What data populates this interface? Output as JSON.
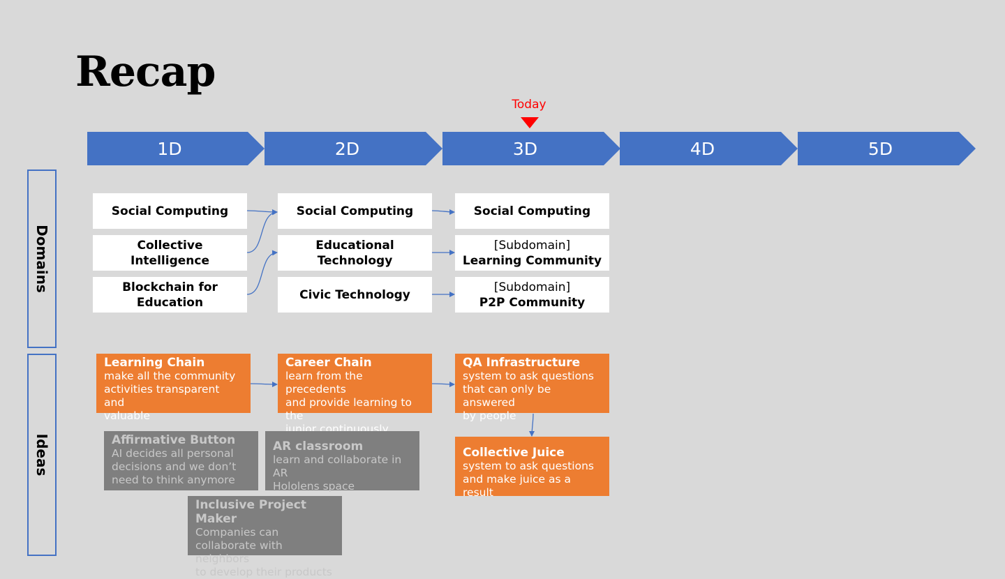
{
  "title": "Recap",
  "today": "Today",
  "phases": [
    "1D",
    "2D",
    "3D",
    "4D",
    "5D"
  ],
  "side_labels": {
    "domains": "Domains",
    "ideas": "Ideas"
  },
  "domains": {
    "d1": [
      {
        "lines": [
          "Social Computing"
        ]
      },
      {
        "lines": [
          "Collective",
          "Intelligence"
        ]
      },
      {
        "lines": [
          "Blockchain for",
          "Education"
        ]
      }
    ],
    "d2": [
      {
        "lines": [
          "Social Computing"
        ]
      },
      {
        "lines": [
          "Educational",
          "Technology"
        ]
      },
      {
        "lines": [
          "Civic Technology"
        ]
      }
    ],
    "d3": [
      {
        "lines": [
          "Social Computing"
        ]
      },
      {
        "prefix": "[Subdomain]",
        "lines": [
          "Learning Community"
        ]
      },
      {
        "prefix": "[Subdomain]",
        "lines": [
          "P2P Community"
        ]
      }
    ]
  },
  "ideas": {
    "learning_chain": {
      "title": "Learning Chain",
      "lines": [
        "make all the community",
        "activities transparent and",
        "valuable"
      ]
    },
    "career_chain": {
      "title": "Career Chain",
      "lines": [
        "learn from the precedents",
        "and provide learning to the",
        "junior continuously"
      ]
    },
    "qa_infrastructure": {
      "title": "QA Infrastructure",
      "lines": [
        "system to ask questions",
        "that can only be answered",
        "by people"
      ]
    },
    "collective_juice": {
      "title": "Collective Juice",
      "lines": [
        "system to ask questions",
        "and make juice as a result"
      ]
    },
    "affirmative_button": {
      "title": "Affirmative Button",
      "lines": [
        "AI decides all personal",
        "decisions and we don’t",
        "need to think anymore"
      ]
    },
    "ar_classroom": {
      "title": "AR classroom",
      "lines": [
        "learn and collaborate in AR",
        "Hololens space"
      ]
    },
    "inclusive_project_maker": {
      "title": "Inclusive Project Maker",
      "lines": [
        "Companies can",
        "collaborate with neighbors",
        "to develop their products"
      ]
    }
  },
  "colors": {
    "phase": "#4472c4",
    "today": "#ff0000",
    "idea_active": "#ed7d31",
    "idea_inactive": "#7f7f7f",
    "background": "#d9d9d9"
  }
}
